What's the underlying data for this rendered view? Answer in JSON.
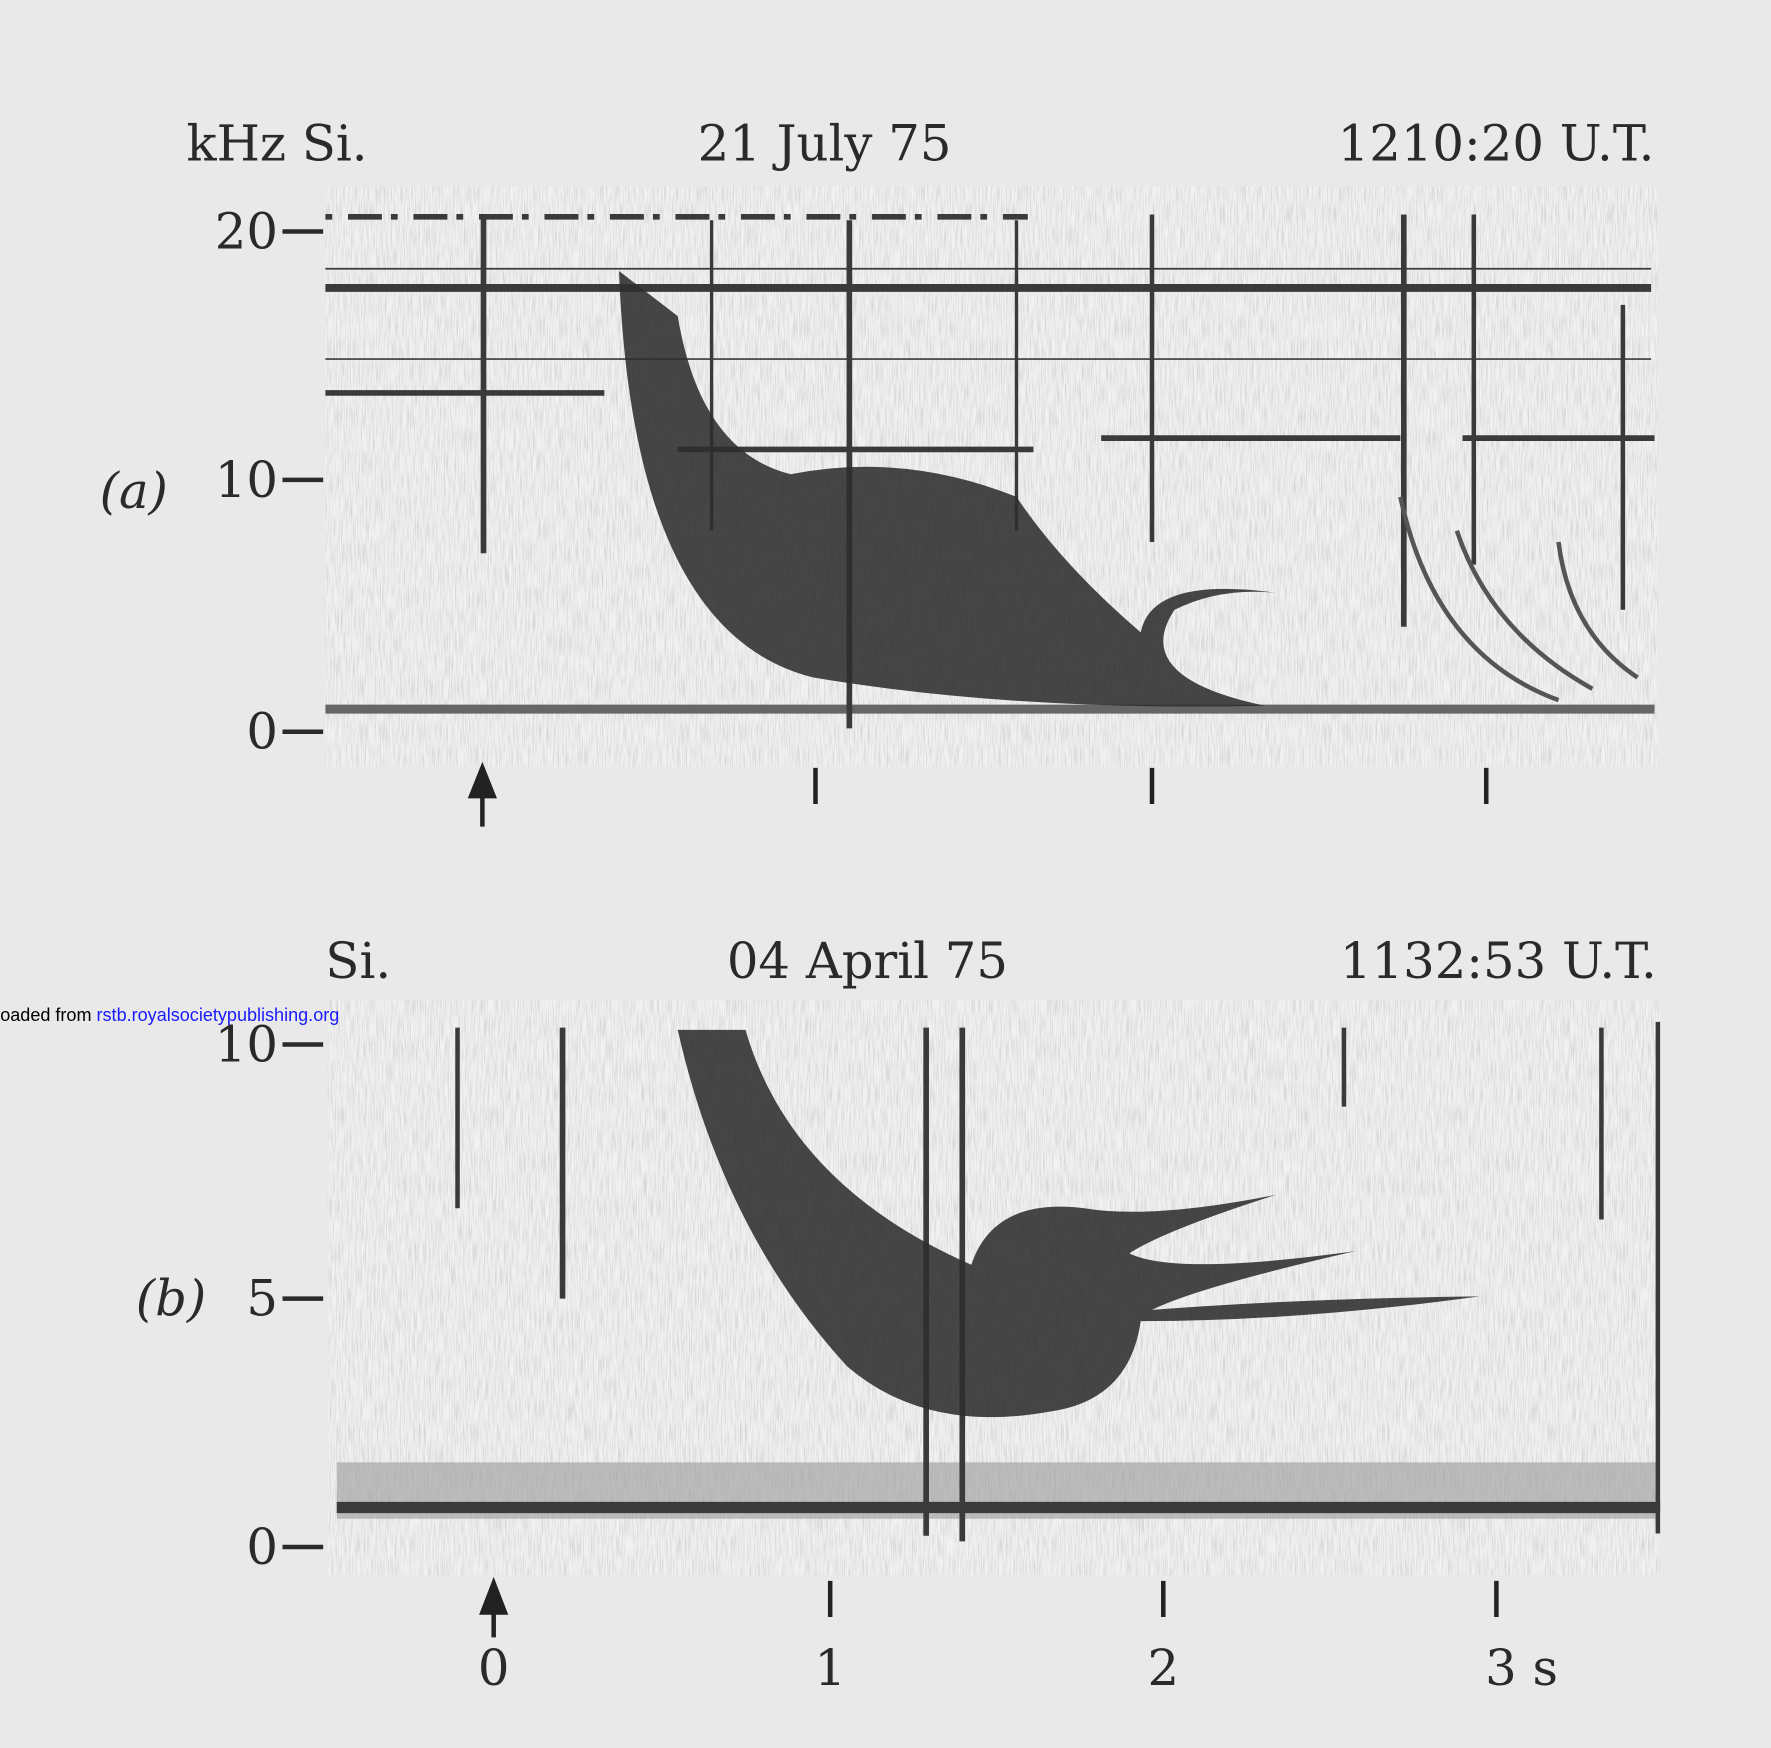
{
  "panel_a": {
    "header": {
      "left": "kHz Si.",
      "center": "21 July 75",
      "right": "1210:20 U.T."
    },
    "label": "(a)",
    "y_ticks": [
      "20",
      "10",
      "0"
    ]
  },
  "panel_b": {
    "header": {
      "left": "Si.",
      "center": "04 April 75",
      "right": "1132:53 U.T."
    },
    "label": "(b)",
    "y_ticks": [
      "10",
      "5",
      "0"
    ]
  },
  "x_ticks": [
    "0",
    "1",
    "2",
    "3 s"
  ],
  "watermark": {
    "prefix": "oaded from",
    "link": "rstb.royalsocietypublishing.org"
  }
}
